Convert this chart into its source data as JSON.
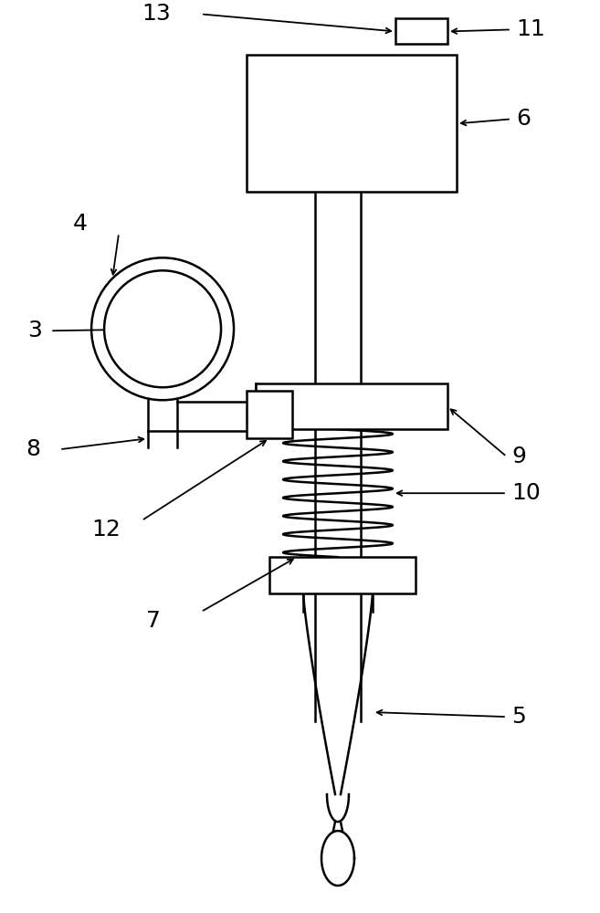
{
  "bg_color": "#ffffff",
  "line_color": "#000000",
  "lw": 1.8,
  "fig_width": 6.57,
  "fig_height": 10.0
}
